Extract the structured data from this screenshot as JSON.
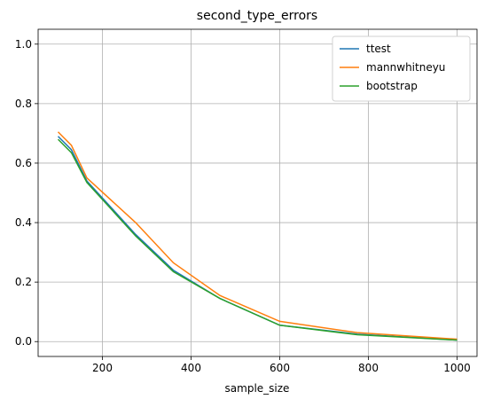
{
  "chart_data": {
    "type": "line",
    "title": "second_type_errors",
    "xlabel": "sample_size",
    "x": [
      100,
      130,
      165,
      275,
      360,
      465,
      600,
      775,
      1000
    ],
    "series": [
      {
        "name": "ttest",
        "color": "#1f77b4",
        "values": [
          0.69,
          0.645,
          0.54,
          0.36,
          0.24,
          0.145,
          0.055,
          0.025,
          0.005
        ]
      },
      {
        "name": "mannwhitneyu",
        "color": "#ff7f0e",
        "values": [
          0.705,
          0.66,
          0.55,
          0.4,
          0.265,
          0.155,
          0.068,
          0.03,
          0.008
        ]
      },
      {
        "name": "bootstrap",
        "color": "#2ca02c",
        "values": [
          0.68,
          0.635,
          0.535,
          0.355,
          0.235,
          0.145,
          0.055,
          0.023,
          0.005
        ]
      }
    ],
    "xlim": [
      55,
      1045
    ],
    "xticks": [
      200,
      400,
      600,
      800,
      1000
    ],
    "ylim": [
      -0.05,
      1.05
    ],
    "yticks": [
      {
        "value": 0,
        "label": "0.0"
      },
      {
        "value": 0.2,
        "label": "0.2"
      },
      {
        "value": 0.4,
        "label": "0.4"
      },
      {
        "value": 0.6,
        "label": "0.6"
      },
      {
        "value": 0.8,
        "label": "0.8"
      },
      {
        "value": 1,
        "label": "1.0"
      }
    ],
    "grid": true,
    "legend": "upper right"
  }
}
